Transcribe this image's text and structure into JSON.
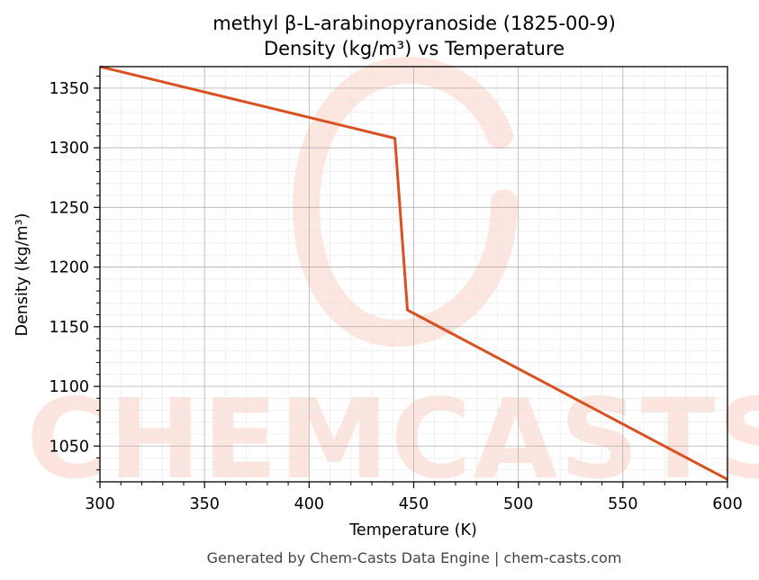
{
  "chart_data": {
    "type": "line",
    "title_line1": "methyl β-L-arabinopyranoside (1825-00-9)",
    "title_line2": "Density (kg/m³) vs Temperature",
    "xlabel": "Temperature (K)",
    "ylabel": "Density (kg/m³)",
    "xlim": [
      300,
      600
    ],
    "ylim": [
      1020,
      1368
    ],
    "xticks": [
      300,
      350,
      400,
      450,
      500,
      550,
      600
    ],
    "yticks": [
      1050,
      1100,
      1150,
      1200,
      1250,
      1300,
      1350
    ],
    "grid": true,
    "series": [
      {
        "color": "#d95021",
        "x": [
          300,
          441,
          447,
          600
        ],
        "y": [
          1368,
          1308,
          1164,
          1022
        ]
      }
    ]
  },
  "watermark": {
    "text": "CHEMCASTS",
    "color": "#fde3dc"
  },
  "footer": "Generated by Chem-Casts Data Engine | chem-casts.com"
}
